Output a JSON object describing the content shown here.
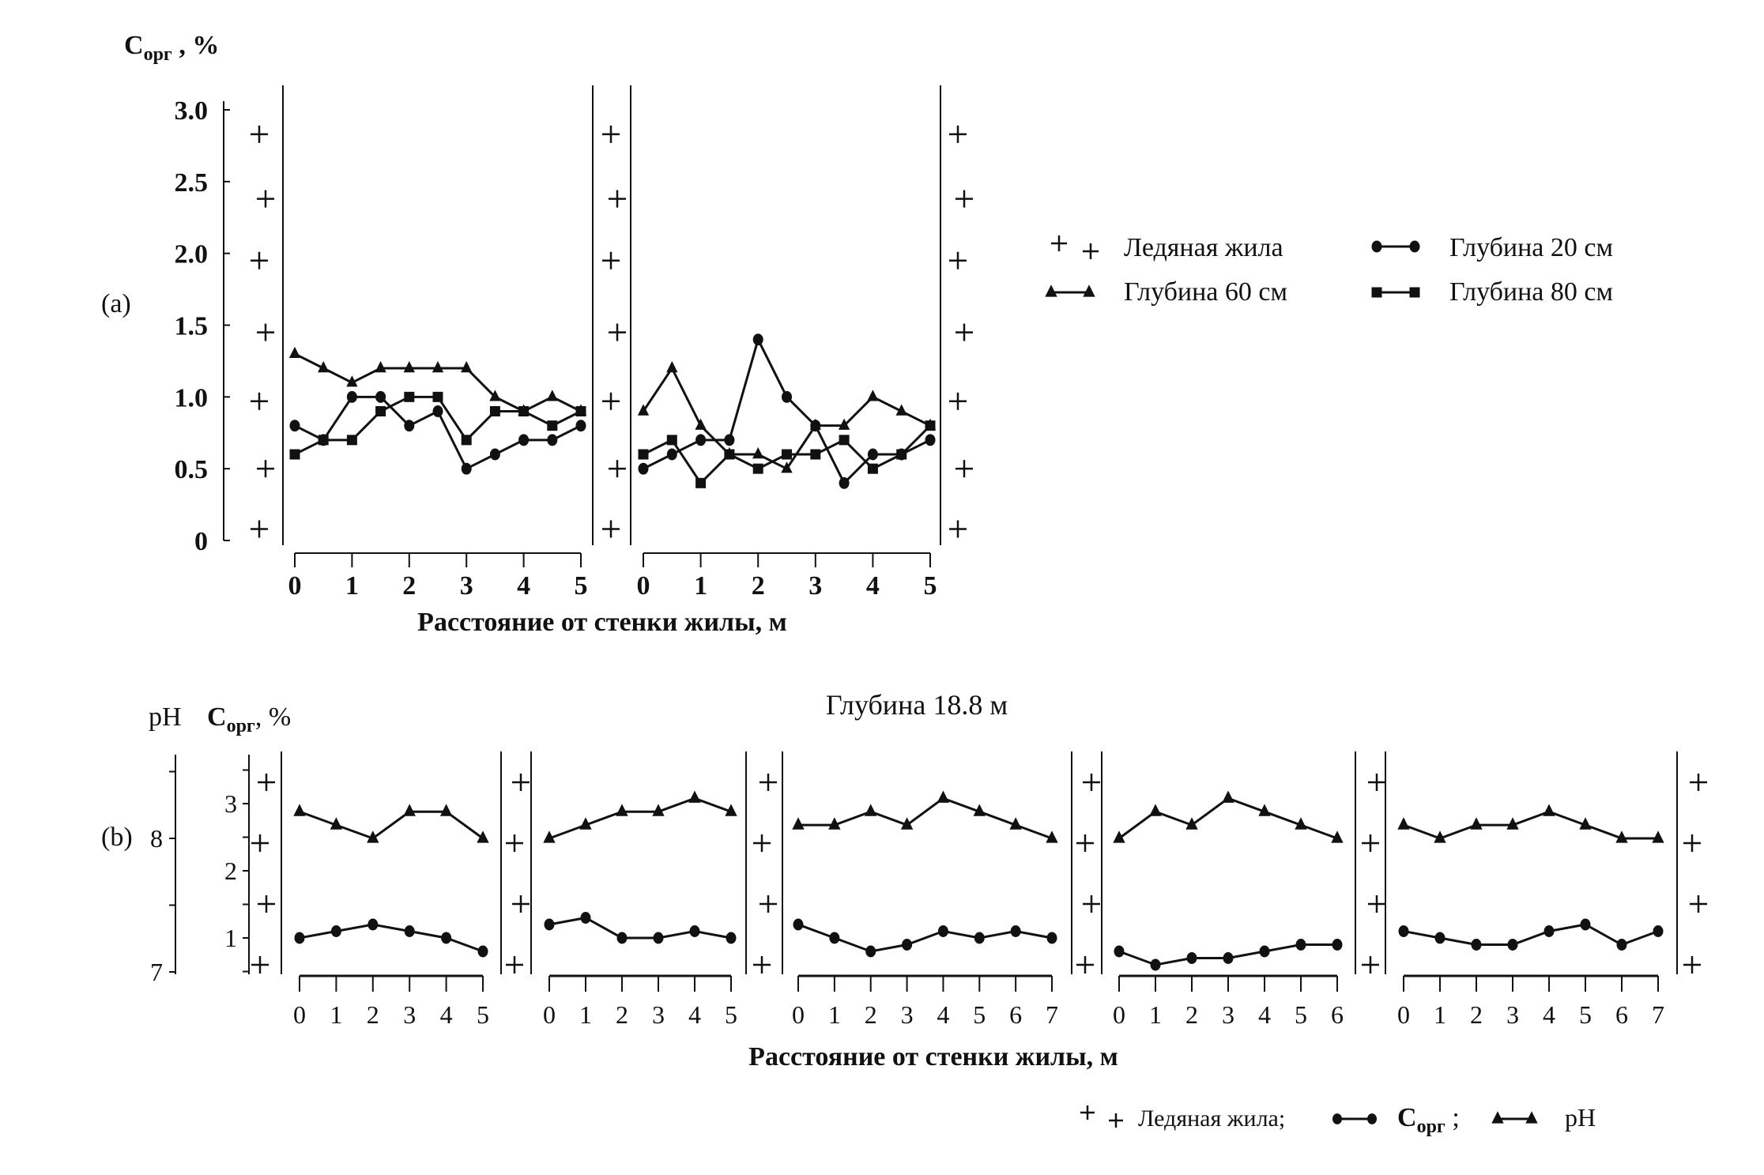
{
  "colors": {
    "ink": "#111111",
    "background": "#ffffff"
  },
  "chart_data": [
    {
      "id": "a",
      "type": "line",
      "panel_label": "(a)",
      "ylabel": "Сорг , %",
      "ylabel_main": "C",
      "ylabel_sub": "орг",
      "ylabel_unit": " , %",
      "xlabel": "Расстояние от стенки жилы, м",
      "ylim": [
        0,
        3.0
      ],
      "yticks": [
        "0",
        "0.5",
        "1.0",
        "1.5",
        "2.0",
        "2.5",
        "3.0"
      ],
      "xlim": [
        0,
        5
      ],
      "xticks": [
        "0",
        "1",
        "2",
        "3",
        "4",
        "5"
      ],
      "legend": [
        {
          "marker": "plus",
          "label": "Ледяная жила"
        },
        {
          "marker": "circle",
          "label": "Глубина 20 см"
        },
        {
          "marker": "triangle",
          "label": "Глубина 60 см"
        },
        {
          "marker": "square",
          "label": "Глубина 80 см"
        }
      ],
      "legend_position": "right",
      "panels": [
        {
          "x": [
            0,
            0.5,
            1,
            1.5,
            2,
            2.5,
            3,
            3.5,
            4,
            4.5,
            5
          ],
          "series": [
            {
              "name": "Глубина 20 см",
              "marker": "circle",
              "values": [
                0.8,
                0.7,
                1.0,
                1.0,
                0.8,
                0.9,
                0.5,
                0.6,
                0.7,
                0.7,
                0.8
              ]
            },
            {
              "name": "Глубина 60 см",
              "marker": "triangle",
              "values": [
                1.3,
                1.2,
                1.1,
                1.2,
                1.2,
                1.2,
                1.2,
                1.0,
                0.9,
                1.0,
                0.9
              ]
            },
            {
              "name": "Глубина 80 см",
              "marker": "square",
              "values": [
                0.6,
                0.7,
                0.7,
                0.9,
                1.0,
                1.0,
                0.7,
                0.9,
                0.9,
                0.8,
                0.9
              ]
            }
          ]
        },
        {
          "x": [
            0,
            0.5,
            1,
            1.5,
            2,
            2.5,
            3,
            3.5,
            4,
            4.5,
            5
          ],
          "series": [
            {
              "name": "Глубина 20 см",
              "marker": "circle",
              "values": [
                0.5,
                0.6,
                0.7,
                0.7,
                1.4,
                1.0,
                0.8,
                0.4,
                0.6,
                0.6,
                0.7
              ]
            },
            {
              "name": "Глубина 60 см",
              "marker": "triangle",
              "values": [
                0.9,
                1.2,
                0.8,
                0.6,
                0.6,
                0.5,
                0.8,
                0.8,
                1.0,
                0.9,
                0.8
              ]
            },
            {
              "name": "Глубина 80 см",
              "marker": "square",
              "values": [
                0.6,
                0.7,
                0.4,
                0.6,
                0.5,
                0.6,
                0.6,
                0.7,
                0.5,
                0.6,
                0.8
              ]
            }
          ]
        }
      ]
    },
    {
      "id": "b",
      "type": "line",
      "panel_label": "(b)",
      "title": "Глубина 18.8 м",
      "ylabel_left": "pH",
      "ylabel_main": "C",
      "ylabel_sub": "орг",
      "ylabel_unit": ", %",
      "xlabel": "Расстояние от стенки жилы, м",
      "ylim_corg": [
        0.5,
        3.8
      ],
      "yticks_corg": [
        "1",
        "2",
        "3"
      ],
      "ylim_ph": [
        7,
        8.5
      ],
      "yticks_ph": [
        "7",
        "8"
      ],
      "legend": [
        {
          "marker": "plus",
          "label": "Ледяная жила;"
        },
        {
          "marker": "circle",
          "label_main": "C",
          "label_sub": "орг",
          "label_tail": " ;"
        },
        {
          "marker": "triangle",
          "label": "pH"
        }
      ],
      "legend_position": "bottom-right",
      "panels": [
        {
          "x": [
            0,
            1,
            2,
            3,
            4,
            5
          ],
          "xticks": [
            "0",
            "1",
            "2",
            "3",
            "4",
            "5"
          ],
          "corg": [
            1.0,
            1.1,
            1.2,
            1.1,
            1.0,
            0.8
          ],
          "ph": [
            8.2,
            8.1,
            8.0,
            8.2,
            8.2,
            8.0
          ]
        },
        {
          "x": [
            0,
            1,
            2,
            3,
            4,
            5
          ],
          "xticks": [
            "0",
            "1",
            "2",
            "3",
            "4",
            "5"
          ],
          "corg": [
            1.2,
            1.3,
            1.0,
            1.0,
            1.1,
            1.0
          ],
          "ph": [
            8.0,
            8.1,
            8.2,
            8.2,
            8.3,
            8.2
          ]
        },
        {
          "x": [
            0,
            1,
            2,
            3,
            4,
            5,
            6,
            7
          ],
          "xticks": [
            "0",
            "1",
            "2",
            "3",
            "4",
            "5",
            "6",
            "7"
          ],
          "corg": [
            1.2,
            1.0,
            0.8,
            0.9,
            1.1,
            1.0,
            1.1,
            1.0
          ],
          "ph": [
            8.1,
            8.1,
            8.2,
            8.1,
            8.3,
            8.2,
            8.1,
            8.0
          ]
        },
        {
          "x": [
            0,
            1,
            2,
            3,
            4,
            5,
            6
          ],
          "xticks": [
            "0",
            "1",
            "2",
            "3",
            "4",
            "5",
            "6"
          ],
          "corg": [
            0.8,
            0.6,
            0.7,
            0.7,
            0.8,
            0.9,
            0.9
          ],
          "ph": [
            8.0,
            8.2,
            8.1,
            8.3,
            8.2,
            8.1,
            8.0
          ]
        },
        {
          "x": [
            0,
            1,
            2,
            3,
            4,
            5,
            6,
            7
          ],
          "xticks": [
            "0",
            "1",
            "2",
            "3",
            "4",
            "5",
            "6",
            "7"
          ],
          "corg": [
            1.1,
            1.0,
            0.9,
            0.9,
            1.1,
            1.2,
            0.9,
            1.1
          ],
          "ph": [
            8.1,
            8.0,
            8.1,
            8.1,
            8.2,
            8.1,
            8.0,
            8.0
          ]
        }
      ]
    }
  ]
}
